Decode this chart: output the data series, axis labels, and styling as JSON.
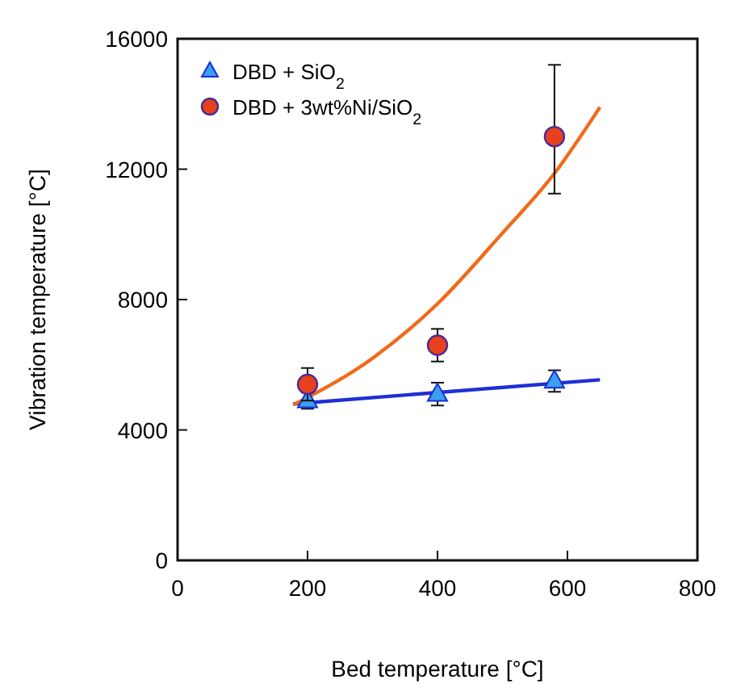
{
  "chart_data": {
    "type": "scatter",
    "xlabel": "Bed temperature  [°C]",
    "ylabel": "Vibration temperature  [°C]",
    "xlim": [
      0,
      800
    ],
    "xticks": [
      0,
      200,
      400,
      600,
      800
    ],
    "ylim": [
      0,
      16000
    ],
    "yticks": [
      0,
      4000,
      8000,
      12000,
      16000
    ],
    "legend": "top left",
    "grid": false,
    "series": [
      {
        "name": "DBD + SiO$_{2}$",
        "marker": "triangle",
        "color": "#3aa0f0",
        "x": [
          200,
          400,
          580
        ],
        "values": [
          4900,
          5100,
          5500
        ],
        "errors": [
          250,
          350,
          330
        ]
      },
      {
        "name": "DBD + 3wt%Ni/SiO$_{2}$",
        "marker": "circle",
        "color": "#e8401c",
        "x": [
          200,
          400,
          580
        ],
        "values": [
          5400,
          6600,
          13000
        ],
        "errors": [
          500,
          500,
          [
            11250,
            15200
          ]
        ]
      },
      {
        "type": "line",
        "marker": "none",
        "color": "#1f2fd6",
        "x": [
          178,
          650
        ],
        "values": [
          4800,
          5540
        ]
      },
      {
        "type": "line",
        "marker": "none",
        "color": "#f06a1a",
        "x": [
          178,
          300,
          400,
          500,
          580,
          650
        ],
        "values": [
          4770,
          6200,
          7870,
          10040,
          11870,
          13900
        ]
      }
    ]
  }
}
